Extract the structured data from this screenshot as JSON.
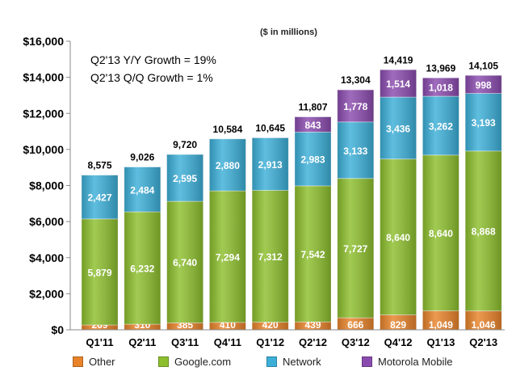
{
  "chart_data": {
    "type": "bar",
    "stacked": true,
    "subtitle": "($ in millions)",
    "notes": [
      "Q2'13 Y/Y Growth = 19%",
      "Q2'13 Q/Q Growth = 1%"
    ],
    "categories": [
      "Q1'11",
      "Q2'11",
      "Q3'11",
      "Q4'11",
      "Q1'12",
      "Q2'12",
      "Q3'12",
      "Q4'12",
      "Q1'13",
      "Q2'13"
    ],
    "series": [
      {
        "name": "Other",
        "color": "#E8832A",
        "values": [
          269,
          310,
          385,
          410,
          420,
          439,
          666,
          829,
          1049,
          1046
        ],
        "labels": [
          "269",
          "310",
          "385",
          "410",
          "420",
          "439",
          "666",
          "829",
          "1,049",
          "1,046"
        ]
      },
      {
        "name": "Google.com",
        "color": "#8DBF2D",
        "values": [
          5879,
          6232,
          6740,
          7294,
          7312,
          7542,
          7727,
          8640,
          8640,
          8868
        ],
        "labels": [
          "5,879",
          "6,232",
          "6,740",
          "7,294",
          "7,312",
          "7,542",
          "7,727",
          "8,640",
          "8,640",
          "8,868"
        ]
      },
      {
        "name": "Network",
        "color": "#3CAFD8",
        "values": [
          2427,
          2484,
          2595,
          2880,
          2913,
          2983,
          3133,
          3436,
          3262,
          3193
        ],
        "labels": [
          "2,427",
          "2,484",
          "2,595",
          "2,880",
          "2,913",
          "2,983",
          "3,133",
          "3,436",
          "3,262",
          "3,193"
        ]
      },
      {
        "name": "Motorola Mobile",
        "color": "#8A4BAE",
        "values": [
          0,
          0,
          0,
          0,
          0,
          843,
          1778,
          1514,
          1018,
          998
        ],
        "labels": [
          "",
          "",
          "",
          "",
          "",
          "843",
          "1,778",
          "1,514",
          "1,018",
          "998"
        ]
      }
    ],
    "totals": [
      "8,575",
      "9,026",
      "9,720",
      "10,584",
      "10,645",
      "11,807",
      "13,304",
      "14,419",
      "13,969",
      "14,105"
    ],
    "yticks": [
      "$0",
      "$2,000",
      "$4,000",
      "$6,000",
      "$8,000",
      "$10,000",
      "$12,000",
      "$14,000",
      "$16,000"
    ],
    "ylim": [
      0,
      16000
    ],
    "grid": false,
    "legend_position": "bottom"
  }
}
